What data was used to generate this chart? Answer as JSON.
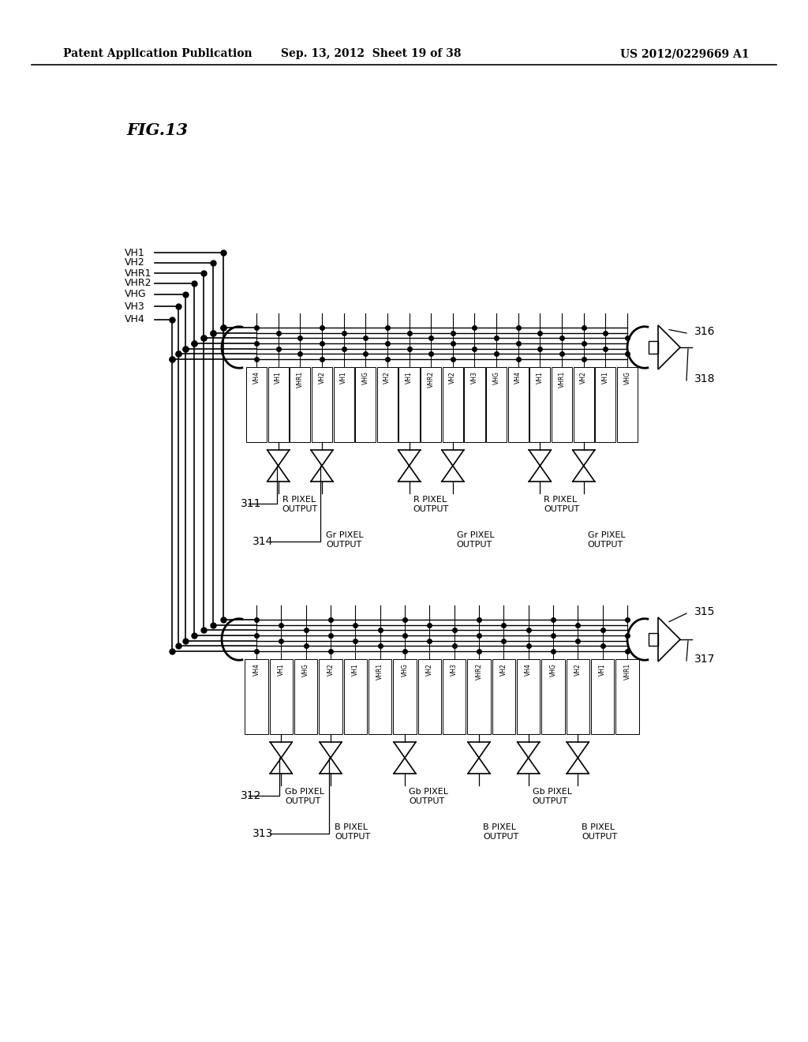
{
  "header_left": "Patent Application Publication",
  "header_mid": "Sep. 13, 2012  Sheet 19 of 38",
  "header_right": "US 2012/0229669 A1",
  "fig_title": "FIG.13",
  "signal_labels": [
    "VH1",
    "VH2",
    "VHR1",
    "VHR2",
    "VHG",
    "VH3",
    "VH4"
  ],
  "col_labels_top": [
    "VH4",
    "VH1",
    "VHR1",
    "VH2",
    "VH1",
    "VHG",
    "VH2",
    "VH1",
    "VHR2",
    "VH2",
    "VH3",
    "VHG",
    "VH4",
    "VH1",
    "VHR1",
    "VH2",
    "VH1",
    "VHG"
  ],
  "col_labels_bot": [
    "VH4",
    "VH1",
    "VHG",
    "VH2",
    "VH1",
    "VHR1",
    "VHG",
    "VH2",
    "VH3",
    "VHR2",
    "VH2",
    "VH4",
    "VHG",
    "VH2",
    "VH1",
    "VHR1"
  ],
  "bg_color": "#ffffff",
  "line_color": "#000000"
}
